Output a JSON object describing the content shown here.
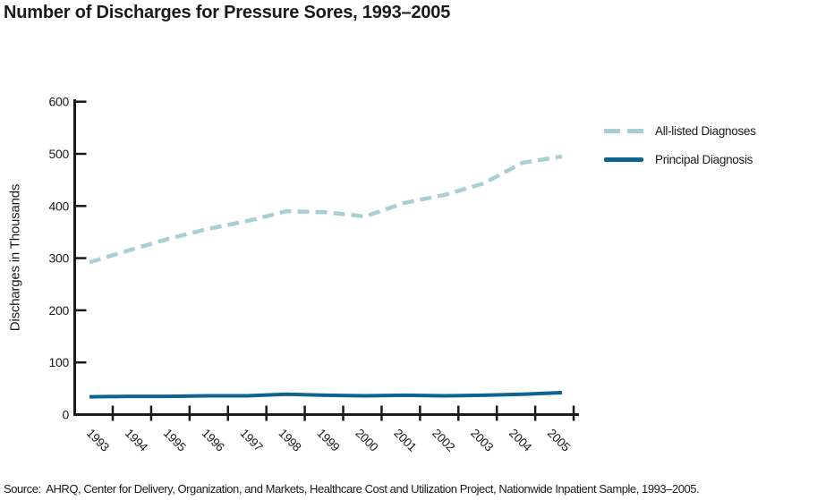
{
  "title": "Number of Discharges for Pressure Sores, 1993–2005",
  "source": "Source:  AHRQ, Center for Delivery, Organization, and Markets, Healthcare Cost and Utilization Project, Nationwide Inpatient Sample, 1993–2005.",
  "colors": {
    "all_listed_line": "#a9cfd6",
    "principal_line": "#0e6390",
    "axis": "#1a1a1a",
    "text": "#1a1a1a",
    "background": "#ffffff"
  },
  "chart_data": {
    "type": "line",
    "title": "Number of Discharges for Pressure Sores, 1993–2005",
    "xlabel": "",
    "ylabel": "Discharges in Thousands",
    "ylim": [
      0,
      600
    ],
    "yticks": [
      0,
      100,
      200,
      300,
      400,
      500,
      600
    ],
    "categories": [
      "1993",
      "1994",
      "1995",
      "1996",
      "1997",
      "1998",
      "1999",
      "2000",
      "2001",
      "2002",
      "2003",
      "2004",
      "2005"
    ],
    "series": [
      {
        "name": "All-listed Diagnoses",
        "style": "dashed",
        "color": "#a9cfd6",
        "values": [
          292,
          315,
          337,
          356,
          371,
          390,
          388,
          380,
          406,
          421,
          443,
          483,
          495
        ]
      },
      {
        "name": "Principal Diagnosis",
        "style": "solid",
        "color": "#0e6390",
        "values": [
          34,
          35,
          35,
          36,
          36,
          39,
          37,
          36,
          37,
          36,
          37,
          39,
          42
        ]
      }
    ],
    "legend_position": "upper-right",
    "grid": false
  }
}
